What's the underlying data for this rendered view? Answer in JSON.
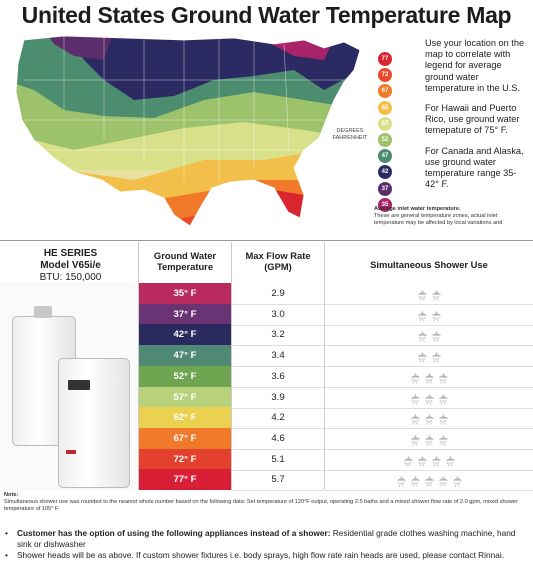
{
  "title": "United States Ground Water Temperature Map",
  "legend": {
    "dots": [
      {
        "label": "77",
        "color": "#d9252f"
      },
      {
        "label": "72",
        "color": "#ea4b2c"
      },
      {
        "label": "67",
        "color": "#f07a2a"
      },
      {
        "label": "62",
        "color": "#f2c04a"
      },
      {
        "label": "57",
        "color": "#d9e08a"
      },
      {
        "label": "52",
        "color": "#9cc26b"
      },
      {
        "label": "47",
        "color": "#4c8d6f"
      },
      {
        "label": "42",
        "color": "#2c2a63"
      },
      {
        "label": "37",
        "color": "#5b2d6b"
      },
      {
        "label": "35",
        "color": "#a8236a"
      }
    ],
    "degrees_label": "DEGREES FAHRENHEIT"
  },
  "side_text": {
    "p1": "Use your location on the map to correlate with legend for average ground water temperature in the U.S.",
    "p2": "For Hawaii and Puerto Rico, use ground water temepature of 75° F.",
    "p3": "For Canada and Alaska, use ground water temperature range 35-42° F."
  },
  "side_note": {
    "bold": "Average inlet water temperature.",
    "text": "These are general temperature zones, actual inlet temperature may be affected by local variations and"
  },
  "model": {
    "line1": "HE SERIES",
    "line2": "Model V65i/e",
    "line3": "BTU: 150,000"
  },
  "headers": {
    "temp": "Ground Water Temperature",
    "flow": "Max Flow Rate (GPM)",
    "shower": "Simultaneous Shower Use"
  },
  "rows": [
    {
      "temp": "35° F",
      "flow": "2.9",
      "color": "#b92a5e",
      "showers": 2
    },
    {
      "temp": "37° F",
      "flow": "3.0",
      "color": "#6a3373",
      "showers": 2
    },
    {
      "temp": "42° F",
      "flow": "3.2",
      "color": "#2b2a5f",
      "showers": 2
    },
    {
      "temp": "47° F",
      "flow": "3.4",
      "color": "#4f8874",
      "showers": 2
    },
    {
      "temp": "52° F",
      "flow": "3.6",
      "color": "#6fa450",
      "showers": 3
    },
    {
      "temp": "57° F",
      "flow": "3.9",
      "color": "#b8d27b",
      "showers": 3
    },
    {
      "temp": "62° F",
      "flow": "4.2",
      "color": "#ead14f",
      "showers": 3
    },
    {
      "temp": "67° F",
      "flow": "4.6",
      "color": "#f07a2a",
      "showers": 3
    },
    {
      "temp": "72° F",
      "flow": "5.1",
      "color": "#e4402e",
      "showers": 4
    },
    {
      "temp": "77° F",
      "flow": "5.7",
      "color": "#d91f36",
      "showers": 5
    }
  ],
  "note": {
    "label": "Note:",
    "text": "Simultaneous shower use was rounded to the nearest whole number based on the following data: Set temperature of 120°F output, operating 2.5 baths and a mixed shower flow rate of 2.0 gpm, mixed shower temperature of 105° F."
  },
  "bullets": {
    "b1_bold": "Customer has the option of using the following appliances instead of a shower:",
    "b1_text": " Residential grade clothes washing machine, hand sink or dishwasher",
    "b2": "Shower heads will be as above. If custom shower fixtures  i.e. body sprays, high flow rate rain heads are used, please contact Rinnai."
  }
}
